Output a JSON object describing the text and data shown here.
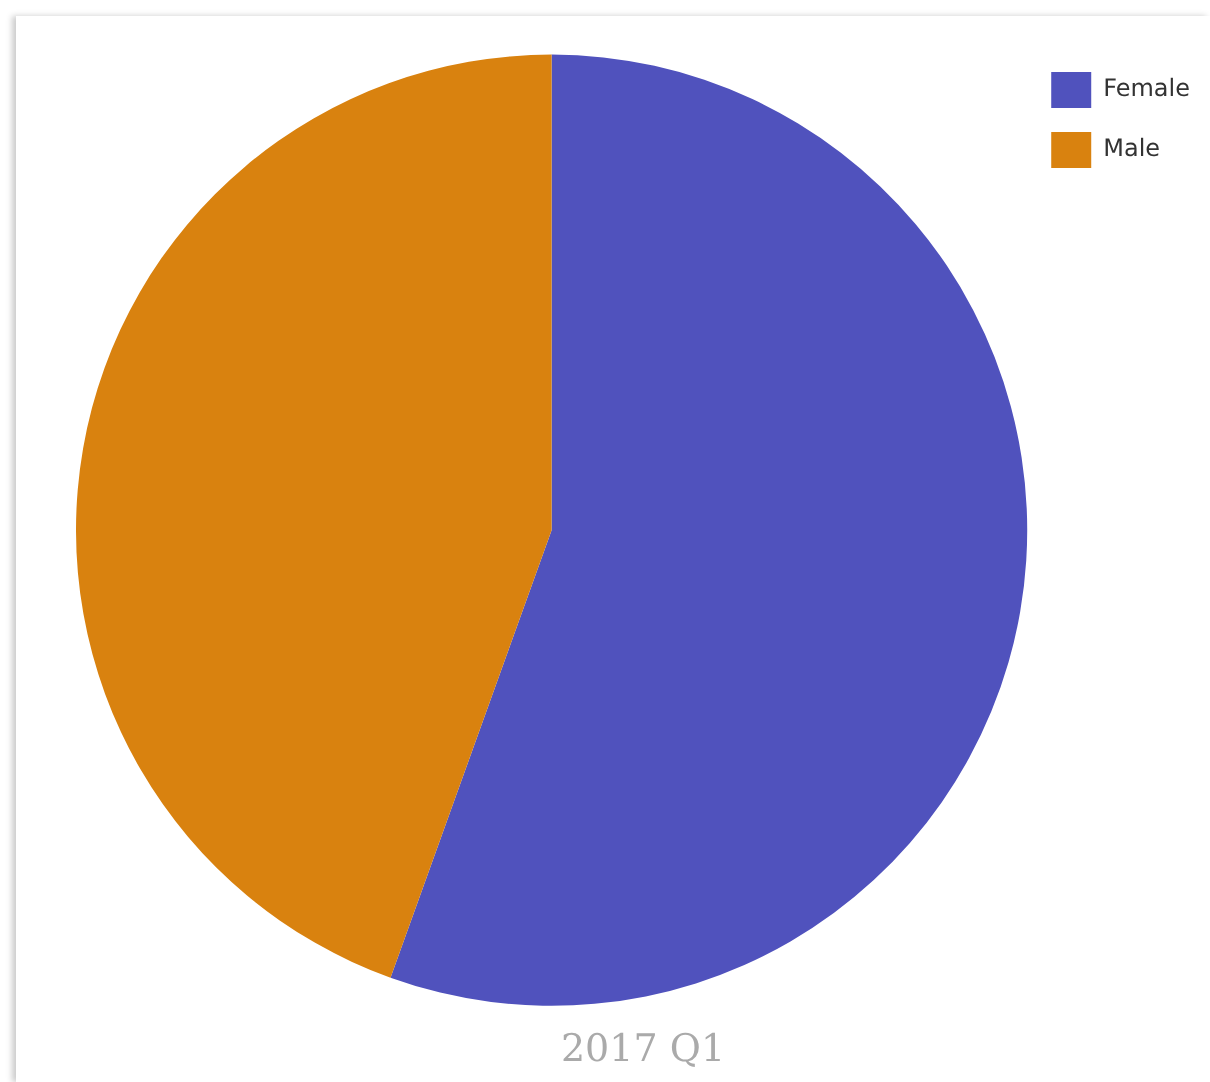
{
  "chart_data": {
    "type": "pie",
    "title": "2017 Q1",
    "categories": [
      "Female",
      "Male"
    ],
    "values": [
      55.5,
      44.5
    ],
    "colors": [
      "#5052bd",
      "#d9820f"
    ],
    "legend": "top right"
  }
}
